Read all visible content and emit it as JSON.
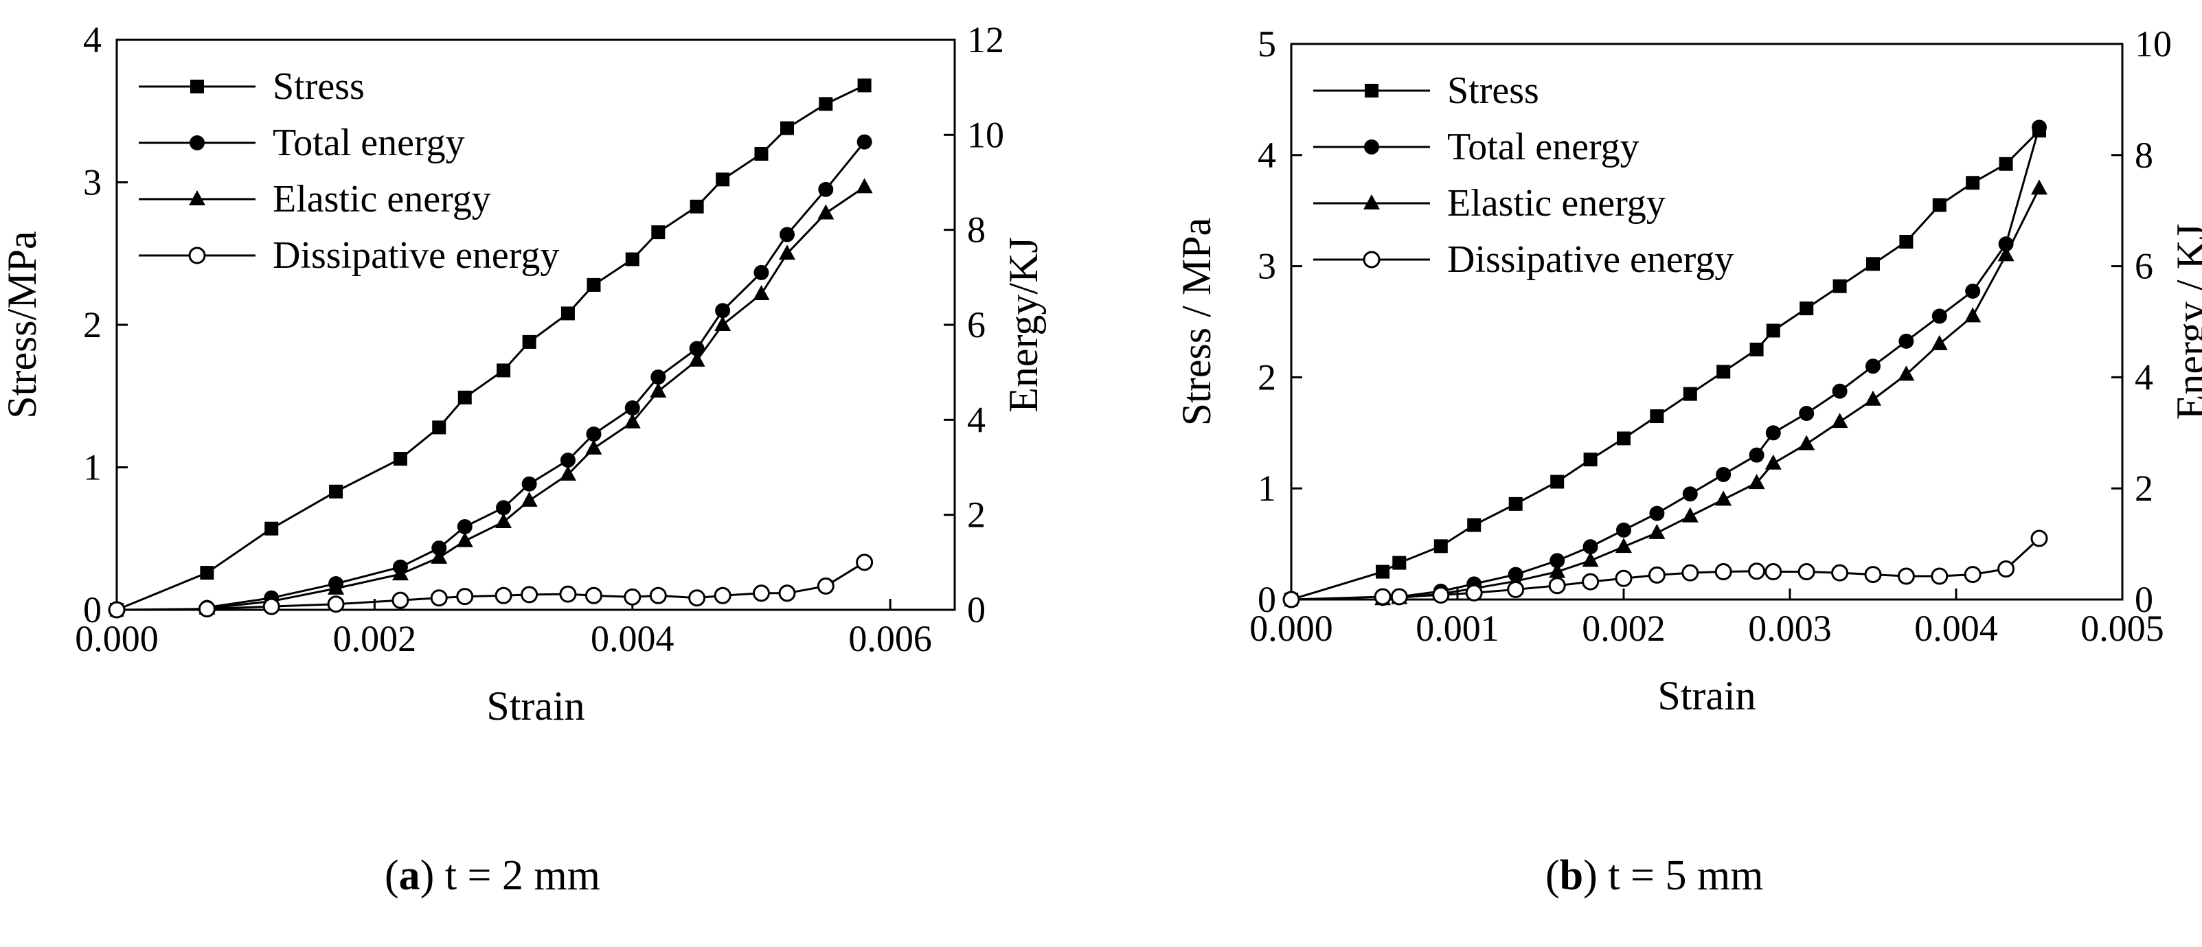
{
  "chart_data": [
    {
      "type": "line",
      "panel_letter": "a",
      "caption": "t = 2 mm",
      "xlabel": "Strain",
      "ylabel_left": "Stress/MPa",
      "ylabel_right": "Energy/KJ",
      "xlim": [
        0,
        0.0065
      ],
      "ylim_left": [
        0,
        4
      ],
      "ylim_right": [
        0,
        12
      ],
      "xticks": [
        "0.000",
        "0.002",
        "0.004",
        "0.006"
      ],
      "yticks_left": [
        "0",
        "1",
        "2",
        "3",
        "4"
      ],
      "yticks_right": [
        "0",
        "2",
        "4",
        "6",
        "8",
        "10",
        "12"
      ],
      "grid": false,
      "legend_position": "top-left",
      "series": [
        {
          "name": "Stress",
          "axis": "left",
          "marker": "square-filled",
          "x": [
            0,
            0.0007,
            0.0012,
            0.0017,
            0.0022,
            0.0025,
            0.0027,
            0.003,
            0.0032,
            0.0035,
            0.0037,
            0.004,
            0.0042,
            0.0045,
            0.0047,
            0.005,
            0.0052,
            0.0055,
            0.0058
          ],
          "y": [
            0,
            0.26,
            0.57,
            0.83,
            1.06,
            1.28,
            1.49,
            1.68,
            1.88,
            2.08,
            2.28,
            2.46,
            2.65,
            2.83,
            3.02,
            3.2,
            3.38,
            3.55,
            3.68
          ]
        },
        {
          "name": "Total energy",
          "axis": "right",
          "marker": "circle-filled",
          "x": [
            0.0007,
            0.0012,
            0.0017,
            0.0022,
            0.0025,
            0.0027,
            0.003,
            0.0032,
            0.0035,
            0.0037,
            0.004,
            0.0042,
            0.0045,
            0.0047,
            0.005,
            0.0052,
            0.0055,
            0.0058
          ],
          "y": [
            0.05,
            0.25,
            0.55,
            0.9,
            1.3,
            1.75,
            2.15,
            2.65,
            3.15,
            3.7,
            4.25,
            4.9,
            5.5,
            6.3,
            7.1,
            7.9,
            8.85,
            9.85
          ]
        },
        {
          "name": "Elastic energy",
          "axis": "right",
          "marker": "triangle-filled",
          "x": [
            0.0007,
            0.0012,
            0.0017,
            0.0022,
            0.0025,
            0.0027,
            0.003,
            0.0032,
            0.0035,
            0.0037,
            0.004,
            0.0042,
            0.0045,
            0.0047,
            0.005,
            0.0052,
            0.0055,
            0.0058
          ],
          "y": [
            0.03,
            0.18,
            0.45,
            0.75,
            1.1,
            1.45,
            1.85,
            2.3,
            2.85,
            3.4,
            3.95,
            4.6,
            5.25,
            6.0,
            6.65,
            7.5,
            8.35,
            8.9
          ]
        },
        {
          "name": "Dissipative energy",
          "axis": "right",
          "marker": "circle-open",
          "x": [
            0,
            0.0007,
            0.0012,
            0.0017,
            0.0022,
            0.0025,
            0.0027,
            0.003,
            0.0032,
            0.0035,
            0.0037,
            0.004,
            0.0042,
            0.0045,
            0.0047,
            0.005,
            0.0052,
            0.0055,
            0.0058
          ],
          "y": [
            0,
            0.02,
            0.07,
            0.12,
            0.2,
            0.25,
            0.28,
            0.3,
            0.32,
            0.33,
            0.3,
            0.27,
            0.3,
            0.25,
            0.3,
            0.35,
            0.35,
            0.5,
            1.0
          ]
        }
      ]
    },
    {
      "type": "line",
      "panel_letter": "b",
      "caption": "t = 5 mm",
      "xlabel": "Strain",
      "ylabel_left": "Stress / MPa",
      "ylabel_right": "Energy / KJ",
      "xlim": [
        0,
        0.005
      ],
      "ylim_left": [
        0,
        5
      ],
      "ylim_right": [
        0,
        10
      ],
      "xticks": [
        "0.000",
        "0.001",
        "0.002",
        "0.003",
        "0.004",
        "0.005"
      ],
      "yticks_left": [
        "0",
        "1",
        "2",
        "3",
        "4",
        "5"
      ],
      "yticks_right": [
        "0",
        "2",
        "4",
        "6",
        "8",
        "10"
      ],
      "grid": false,
      "legend_position": "top-left",
      "series": [
        {
          "name": "Stress",
          "axis": "left",
          "marker": "square-filled",
          "x": [
            0,
            0.00055,
            0.00065,
            0.0009,
            0.0011,
            0.00135,
            0.0016,
            0.0018,
            0.002,
            0.0022,
            0.0024,
            0.0026,
            0.0028,
            0.0029,
            0.0031,
            0.0033,
            0.0035,
            0.0037,
            0.0039,
            0.0041,
            0.0043,
            0.0045
          ],
          "y": [
            0,
            0.25,
            0.33,
            0.48,
            0.67,
            0.86,
            1.06,
            1.26,
            1.45,
            1.65,
            1.85,
            2.05,
            2.25,
            2.42,
            2.62,
            2.82,
            3.02,
            3.22,
            3.55,
            3.75,
            3.92,
            4.22
          ]
        },
        {
          "name": "Total energy",
          "axis": "right",
          "marker": "circle-filled",
          "x": [
            0.00055,
            0.00065,
            0.0009,
            0.0011,
            0.00135,
            0.0016,
            0.0018,
            0.002,
            0.0022,
            0.0024,
            0.0026,
            0.0028,
            0.0029,
            0.0031,
            0.0033,
            0.0035,
            0.0037,
            0.0039,
            0.0041,
            0.0043,
            0.0045
          ],
          "y": [
            0.02,
            0.05,
            0.15,
            0.28,
            0.45,
            0.7,
            0.95,
            1.25,
            1.55,
            1.9,
            2.25,
            2.6,
            3.0,
            3.35,
            3.75,
            4.2,
            4.65,
            5.1,
            5.55,
            6.4,
            8.5
          ]
        },
        {
          "name": "Elastic energy",
          "axis": "right",
          "marker": "triangle-filled",
          "x": [
            0.00055,
            0.00065,
            0.0009,
            0.0011,
            0.00135,
            0.0016,
            0.0018,
            0.002,
            0.0022,
            0.0024,
            0.0026,
            0.0028,
            0.0029,
            0.0031,
            0.0033,
            0.0035,
            0.0037,
            0.0039,
            0.0041,
            0.0043,
            0.0045
          ],
          "y": [
            0.01,
            0.03,
            0.1,
            0.2,
            0.33,
            0.5,
            0.7,
            0.95,
            1.2,
            1.5,
            1.8,
            2.1,
            2.45,
            2.8,
            3.2,
            3.6,
            4.05,
            4.6,
            5.1,
            6.2,
            7.4
          ]
        },
        {
          "name": "Dissipative energy",
          "axis": "right",
          "marker": "circle-open",
          "x": [
            0,
            0.00055,
            0.00065,
            0.0009,
            0.0011,
            0.00135,
            0.0016,
            0.0018,
            0.002,
            0.0022,
            0.0024,
            0.0026,
            0.0028,
            0.0029,
            0.0031,
            0.0033,
            0.0035,
            0.0037,
            0.0039,
            0.0041,
            0.0043,
            0.0045
          ],
          "y": [
            0,
            0.05,
            0.05,
            0.08,
            0.12,
            0.18,
            0.25,
            0.32,
            0.38,
            0.44,
            0.48,
            0.5,
            0.51,
            0.5,
            0.5,
            0.48,
            0.45,
            0.42,
            0.42,
            0.45,
            0.55,
            1.1
          ]
        }
      ]
    }
  ]
}
